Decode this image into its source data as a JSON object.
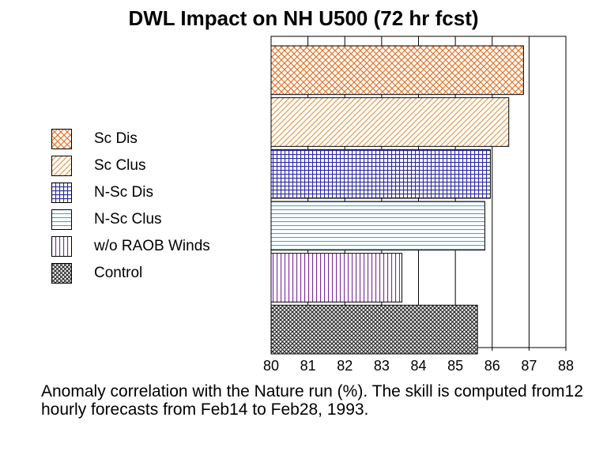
{
  "chart_data": {
    "type": "bar",
    "orientation": "horizontal",
    "title": "DWL Impact on NH U500 (72 hr fcst)",
    "caption": "Anomaly correlation with the Nature run (%).  The skill is computed from12 hourly forecasts from Feb14 to Feb28, 1993.",
    "categories": [
      "Sc Dis",
      "Sc Clus",
      "N-Sc Dis",
      "N-Sc Clus",
      "w/o RAOB Winds",
      "Control"
    ],
    "values": [
      86.85,
      86.45,
      85.95,
      85.8,
      83.55,
      85.6
    ],
    "xlim": [
      80,
      88
    ],
    "xticks": [
      "80",
      "81",
      "82",
      "83",
      "84",
      "85",
      "86",
      "87",
      "88"
    ],
    "grid": "vertical",
    "legend_position": "left",
    "series_styles": [
      {
        "pattern": "crosshatch-diagonal",
        "color": "#e8752a"
      },
      {
        "pattern": "diagonal",
        "color": "#e89a4a"
      },
      {
        "pattern": "grid",
        "color": "#2a2aa0"
      },
      {
        "pattern": "horizontal",
        "color": "#4aa8c8"
      },
      {
        "pattern": "vertical",
        "color": "#7a2a9a"
      },
      {
        "pattern": "crosshatch-dense",
        "color": "#333333"
      }
    ]
  }
}
